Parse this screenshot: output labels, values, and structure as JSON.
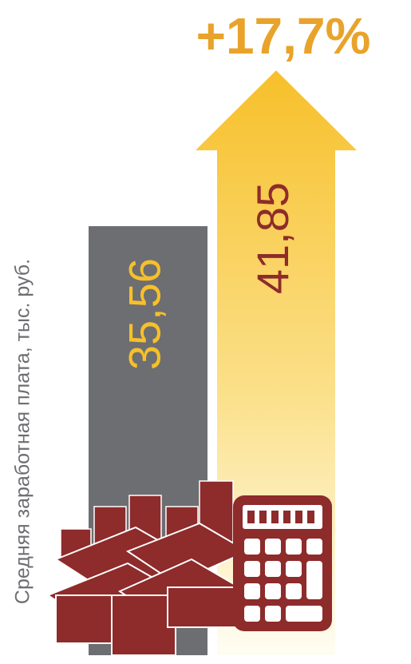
{
  "chart_data": {
    "type": "bar",
    "y_label": "Средняя заработная плата, тыс. руб.",
    "annotation": "+17,7%",
    "categories": [
      null,
      null
    ],
    "values": [
      35.56,
      41.85
    ],
    "value_labels": [
      "35,56",
      "41,85"
    ],
    "colors": [
      "#6d6e71",
      "#f7c02a"
    ],
    "label_colors": [
      "#f7c02a",
      "#8e2b2b"
    ],
    "annotation_color": "#e9a32a",
    "ylim": [
      0,
      50
    ]
  }
}
